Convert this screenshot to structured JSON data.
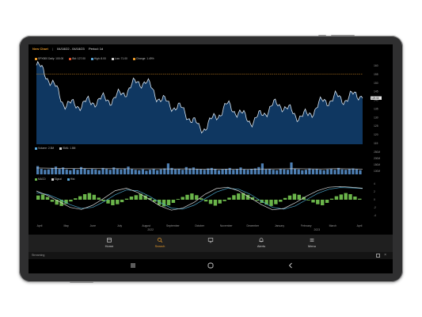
{
  "header": {
    "symbol": "New Chart",
    "date_range": "04/18/22 - 04/18/23",
    "period": "Period: 1d",
    "sep": "|"
  },
  "price_legend": [
    {
      "label": "SPX500 Daily: 100.00",
      "color": "#e79a2b"
    },
    {
      "label": "Bid: 127.00",
      "color": "#e0552e"
    },
    {
      "label": "High: 8.00",
      "color": "#58a6d9"
    },
    {
      "label": "Low: 71.00",
      "color": "#d0d0d0"
    },
    {
      "label": "Change: 1.49%",
      "color": "#e79a2b"
    }
  ],
  "volume_legend": [
    {
      "label": "Volume: 2.5M",
      "color": "#58a6d9"
    },
    {
      "label": "SMA: 1.8M",
      "color": "#d0d0d0"
    }
  ],
  "macd_legend": [
    {
      "label": "MACD",
      "color": "#6ab44a"
    },
    {
      "label": "Signal",
      "color": "#d0d0d0"
    },
    {
      "label": "Hist",
      "color": "#58a6d9"
    }
  ],
  "price_axis": [
    "160",
    "155",
    "150",
    "145",
    "140",
    "135",
    "130",
    "125",
    "120",
    "115"
  ],
  "price_marker": "129.50",
  "volume_axis": [
    "250M",
    "200M",
    "150M",
    "100M"
  ],
  "macd_axis": [
    "4",
    "2",
    "0",
    "-2",
    "-4"
  ],
  "months": [
    "April",
    "May",
    "June",
    "July",
    "August",
    "September",
    "October",
    "November",
    "December",
    "January",
    "February",
    "March",
    "April"
  ],
  "years": [
    "2022",
    "2023"
  ],
  "nav": [
    {
      "label": "Home",
      "icon": "home-icon"
    },
    {
      "label": "Search",
      "icon": "search-icon"
    },
    {
      "label": "Alerts",
      "icon": "bell-icon"
    },
    {
      "label": "Menu",
      "icon": "menu-icon"
    }
  ],
  "nav_active": "Search",
  "status": {
    "left": "Streaming"
  },
  "chart_data": [
    {
      "type": "area",
      "x": [
        "2022-04",
        "2022-05",
        "2022-06",
        "2022-07",
        "2022-08",
        "2022-09",
        "2022-10",
        "2022-11",
        "2022-12",
        "2023-01",
        "2023-02",
        "2023-03",
        "2023-04"
      ],
      "values": [
        160,
        140,
        137,
        144,
        150,
        137,
        125,
        135,
        130,
        137,
        131,
        143,
        142
      ],
      "ylim": [
        115,
        162
      ],
      "reference_line": 155
    },
    {
      "type": "bar",
      "ylim": [
        0,
        260
      ],
      "values": [
        90,
        60,
        50,
        55,
        70,
        85,
        60,
        75,
        55,
        45,
        60,
        50,
        80,
        65,
        50,
        60,
        55,
        45,
        70,
        60,
        50,
        75,
        60,
        55,
        65,
        85,
        60,
        50,
        45,
        55,
        40,
        50,
        60,
        45,
        55,
        65,
        120,
        70,
        55,
        60,
        50,
        80,
        65,
        75,
        60,
        55,
        50,
        65,
        70,
        60,
        45,
        55,
        60,
        70,
        50,
        60,
        75,
        55,
        50,
        60,
        65,
        80,
        120,
        55,
        60,
        50,
        45,
        60,
        55,
        50,
        130,
        60,
        55,
        45,
        50,
        65,
        55,
        60,
        50,
        45,
        55,
        60,
        50,
        70,
        55,
        50,
        60,
        65,
        55,
        45
      ],
      "sma": [
        70,
        68,
        66,
        64,
        63,
        62,
        62,
        61,
        60,
        60,
        59,
        60,
        58,
        57,
        57,
        56,
        58,
        59,
        60,
        62,
        60,
        59,
        62,
        60,
        58
      ]
    },
    {
      "type": "bar",
      "ylim": [
        -5,
        5
      ],
      "histogram": [
        1.2,
        1.5,
        0.8,
        -0.6,
        -1.4,
        -1.8,
        -1.2,
        -0.5,
        0.4,
        1.0,
        1.6,
        1.9,
        1.4,
        0.6,
        -0.4,
        -1.1,
        -1.6,
        -1.3,
        -0.7,
        0.3,
        0.9,
        1.3,
        1.7,
        1.2,
        0.5,
        -0.6,
        -1.5,
        -1.9,
        -1.6,
        -0.9,
        0.2,
        0.8,
        1.4,
        1.8,
        1.3,
        0.4,
        -0.5,
        -1.2,
        -1.7,
        -1.1,
        -0.4,
        0.6,
        1.3,
        1.8,
        1.9,
        1.4,
        0.7,
        -0.3,
        -0.9,
        -1.4,
        -1.8,
        -1.3,
        -0.6,
        0.5,
        1.2,
        1.7,
        1.4,
        0.8,
        -0.2,
        -0.8,
        -1.3,
        -1.6,
        -0.9,
        0.3,
        1.0,
        1.5,
        1.9,
        1.6,
        0.9,
        0.3
      ],
      "macd": [
        2.5,
        1.2,
        -0.5,
        -2.2,
        -2.8,
        -1.6,
        0.4,
        2.6,
        3.3,
        2.1,
        0.2,
        -1.8,
        -3.0,
        -2.4,
        -0.8,
        1.6,
        3.2,
        3.6,
        2.5,
        0.6,
        -1.4,
        -2.9,
        -2.5,
        -0.9,
        1.0,
        2.6,
        3.6,
        3.8,
        3.6,
        3.3
      ],
      "signal": [
        2.0,
        1.5,
        0.2,
        -1.4,
        -2.5,
        -2.2,
        -0.6,
        1.4,
        2.8,
        2.6,
        1.1,
        -0.8,
        -2.4,
        -2.7,
        -1.6,
        0.3,
        2.2,
        3.3,
        3.0,
        1.6,
        -0.4,
        -2.2,
        -2.7,
        -1.8,
        0.0,
        1.8,
        3.0,
        3.5,
        3.4,
        3.2
      ]
    }
  ]
}
